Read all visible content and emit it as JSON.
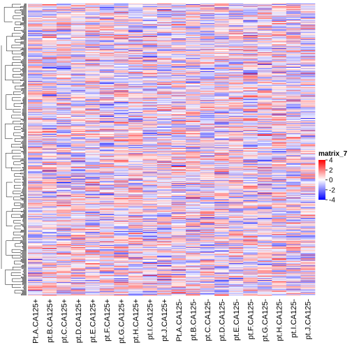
{
  "chart_data": {
    "type": "heatmap",
    "title": "",
    "row_dendrogram": true,
    "n_rows": 400,
    "columns": [
      "Pt.A.CA125+",
      "pt.B.CA125+",
      "pt.C.CA125+",
      "pt.D.CA125+",
      "pt.E.CA125+",
      "pt.F.CA125+",
      "pt.G.CA125+",
      "pt.H.CA125+",
      "pt.I.CA125+",
      "pt.J.CA125+",
      "Pt.A.CA125-",
      "pt.B.CA125-",
      "pt.C.CA125-",
      "pt.D.CA125-",
      "pt.E.CA125-",
      "pt.F.CA125-",
      "pt.G.CA125-",
      "pt.H.CA125-",
      "pt.I.CA125-",
      "pt.J.CA125-"
    ],
    "legend": {
      "title": "matrix_7",
      "ticks": [
        4,
        2,
        0,
        -2,
        -4
      ],
      "range": [
        -4,
        4
      ],
      "colors": {
        "high": "#ff0000",
        "mid": "#ffffff",
        "low": "#0000ff"
      }
    }
  }
}
